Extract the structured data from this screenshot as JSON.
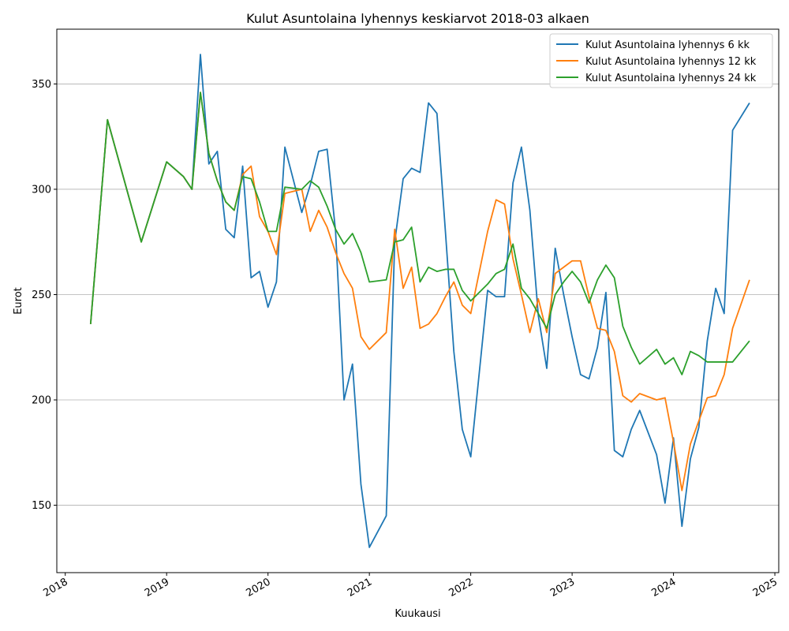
{
  "chart_data": {
    "type": "line",
    "title": "Kulut Asuntolaina lyhennys keskiarvot 2018-03 alkaen",
    "xlabel": "Kuukausi",
    "ylabel": "Eurot",
    "xlim": [
      "2017-12-01",
      "2025-01-15"
    ],
    "ylim": [
      118,
      376
    ],
    "x_ticks": [
      "2018",
      "2019",
      "2020",
      "2021",
      "2022",
      "2023",
      "2024",
      "2025"
    ],
    "y_ticks": [
      150,
      200,
      250,
      300,
      350
    ],
    "grid": "y",
    "legend_position": "top-right",
    "series": [
      {
        "name": "Kulut Asuntolaina lyhennys 6 kk",
        "color": "#1f77b4",
        "points": [
          [
            "2018-04",
            236
          ],
          [
            "2018-06",
            333
          ],
          [
            "2018-10",
            275
          ],
          [
            "2019-01",
            313
          ],
          [
            "2019-03",
            306
          ],
          [
            "2019-04",
            300
          ],
          [
            "2019-05",
            364
          ],
          [
            "2019-06",
            312
          ],
          [
            "2019-07",
            318
          ],
          [
            "2019-08",
            281
          ],
          [
            "2019-09",
            277
          ],
          [
            "2019-10",
            311
          ],
          [
            "2019-11",
            258
          ],
          [
            "2019-12",
            261
          ],
          [
            "2020-01",
            244
          ],
          [
            "2020-02",
            256
          ],
          [
            "2020-03",
            320
          ],
          [
            "2020-05",
            289
          ],
          [
            "2020-06",
            302
          ],
          [
            "2020-07",
            318
          ],
          [
            "2020-08",
            319
          ],
          [
            "2020-09",
            280
          ],
          [
            "2020-10",
            200
          ],
          [
            "2020-11",
            217
          ],
          [
            "2020-12",
            160
          ],
          [
            "2021-01",
            130
          ],
          [
            "2021-03",
            145
          ],
          [
            "2021-04",
            275
          ],
          [
            "2021-05",
            305
          ],
          [
            "2021-06",
            310
          ],
          [
            "2021-07",
            308
          ],
          [
            "2021-08",
            341
          ],
          [
            "2021-09",
            336
          ],
          [
            "2021-10",
            280
          ],
          [
            "2021-11",
            223
          ],
          [
            "2021-12",
            186
          ],
          [
            "2022-01",
            173
          ],
          [
            "2022-03",
            252
          ],
          [
            "2022-04",
            249
          ],
          [
            "2022-05",
            249
          ],
          [
            "2022-06",
            303
          ],
          [
            "2022-07",
            320
          ],
          [
            "2022-08",
            290
          ],
          [
            "2022-09",
            240
          ],
          [
            "2022-10",
            215
          ],
          [
            "2022-11",
            272
          ],
          [
            "2022-12",
            250
          ],
          [
            "2023-01",
            230
          ],
          [
            "2023-02",
            212
          ],
          [
            "2023-03",
            210
          ],
          [
            "2023-04",
            225
          ],
          [
            "2023-05",
            251
          ],
          [
            "2023-06",
            176
          ],
          [
            "2023-07",
            173
          ],
          [
            "2023-08",
            186
          ],
          [
            "2023-09",
            195
          ],
          [
            "2023-11",
            174
          ],
          [
            "2023-12",
            151
          ],
          [
            "2024-01",
            182
          ],
          [
            "2024-02",
            140
          ],
          [
            "2024-03",
            172
          ],
          [
            "2024-04",
            187
          ],
          [
            "2024-05",
            228
          ],
          [
            "2024-06",
            253
          ],
          [
            "2024-07",
            241
          ],
          [
            "2024-08",
            328
          ],
          [
            "2024-10",
            341
          ]
        ]
      },
      {
        "name": "Kulut Asuntolaina lyhennys 12 kk",
        "color": "#ff7f0e",
        "points": [
          [
            "2018-04",
            236
          ],
          [
            "2018-06",
            333
          ],
          [
            "2018-10",
            275
          ],
          [
            "2019-01",
            313
          ],
          [
            "2019-03",
            306
          ],
          [
            "2019-04",
            300
          ],
          [
            "2019-05",
            346
          ],
          [
            "2019-06",
            317
          ],
          [
            "2019-07",
            304
          ],
          [
            "2019-08",
            294
          ],
          [
            "2019-09",
            290
          ],
          [
            "2019-10",
            307
          ],
          [
            "2019-11",
            311
          ],
          [
            "2019-12",
            287
          ],
          [
            "2020-01",
            280
          ],
          [
            "2020-02",
            269
          ],
          [
            "2020-03",
            298
          ],
          [
            "2020-05",
            300
          ],
          [
            "2020-06",
            280
          ],
          [
            "2020-07",
            290
          ],
          [
            "2020-08",
            282
          ],
          [
            "2020-09",
            270
          ],
          [
            "2020-10",
            260
          ],
          [
            "2020-11",
            253
          ],
          [
            "2020-12",
            230
          ],
          [
            "2021-01",
            224
          ],
          [
            "2021-03",
            232
          ],
          [
            "2021-04",
            281
          ],
          [
            "2021-05",
            253
          ],
          [
            "2021-06",
            263
          ],
          [
            "2021-07",
            234
          ],
          [
            "2021-08",
            236
          ],
          [
            "2021-09",
            241
          ],
          [
            "2021-10",
            249
          ],
          [
            "2021-11",
            256
          ],
          [
            "2021-12",
            245
          ],
          [
            "2022-01",
            241
          ],
          [
            "2022-03",
            280
          ],
          [
            "2022-04",
            295
          ],
          [
            "2022-05",
            293
          ],
          [
            "2022-06",
            267
          ],
          [
            "2022-07",
            250
          ],
          [
            "2022-08",
            232
          ],
          [
            "2022-09",
            248
          ],
          [
            "2022-10",
            232
          ],
          [
            "2022-11",
            260
          ],
          [
            "2022-12",
            263
          ],
          [
            "2023-01",
            266
          ],
          [
            "2023-02",
            266
          ],
          [
            "2023-03",
            249
          ],
          [
            "2023-04",
            234
          ],
          [
            "2023-05",
            233
          ],
          [
            "2023-06",
            223
          ],
          [
            "2023-07",
            202
          ],
          [
            "2023-08",
            199
          ],
          [
            "2023-09",
            203
          ],
          [
            "2023-11",
            200
          ],
          [
            "2023-12",
            201
          ],
          [
            "2024-01",
            180
          ],
          [
            "2024-02",
            157
          ],
          [
            "2024-03",
            179
          ],
          [
            "2024-04",
            190
          ],
          [
            "2024-05",
            201
          ],
          [
            "2024-06",
            202
          ],
          [
            "2024-07",
            212
          ],
          [
            "2024-08",
            234
          ],
          [
            "2024-10",
            257
          ]
        ]
      },
      {
        "name": "Kulut Asuntolaina lyhennys 24 kk",
        "color": "#2ca02c",
        "points": [
          [
            "2018-04",
            236
          ],
          [
            "2018-06",
            333
          ],
          [
            "2018-10",
            275
          ],
          [
            "2019-01",
            313
          ],
          [
            "2019-03",
            306
          ],
          [
            "2019-04",
            300
          ],
          [
            "2019-05",
            346
          ],
          [
            "2019-06",
            317
          ],
          [
            "2019-07",
            304
          ],
          [
            "2019-08",
            294
          ],
          [
            "2019-09",
            290
          ],
          [
            "2019-10",
            306
          ],
          [
            "2019-11",
            305
          ],
          [
            "2019-12",
            294
          ],
          [
            "2020-01",
            280
          ],
          [
            "2020-02",
            280
          ],
          [
            "2020-03",
            301
          ],
          [
            "2020-05",
            300
          ],
          [
            "2020-06",
            304
          ],
          [
            "2020-07",
            301
          ],
          [
            "2020-08",
            292
          ],
          [
            "2020-09",
            281
          ],
          [
            "2020-10",
            274
          ],
          [
            "2020-11",
            279
          ],
          [
            "2020-12",
            270
          ],
          [
            "2021-01",
            256
          ],
          [
            "2021-03",
            257
          ],
          [
            "2021-04",
            275
          ],
          [
            "2021-05",
            276
          ],
          [
            "2021-06",
            282
          ],
          [
            "2021-07",
            256
          ],
          [
            "2021-08",
            263
          ],
          [
            "2021-09",
            261
          ],
          [
            "2021-10",
            262
          ],
          [
            "2021-11",
            262
          ],
          [
            "2021-12",
            252
          ],
          [
            "2022-01",
            247
          ],
          [
            "2022-03",
            255
          ],
          [
            "2022-04",
            260
          ],
          [
            "2022-05",
            262
          ],
          [
            "2022-06",
            274
          ],
          [
            "2022-07",
            253
          ],
          [
            "2022-08",
            248
          ],
          [
            "2022-09",
            241
          ],
          [
            "2022-10",
            234
          ],
          [
            "2022-11",
            250
          ],
          [
            "2022-12",
            256
          ],
          [
            "2023-01",
            261
          ],
          [
            "2023-02",
            256
          ],
          [
            "2023-03",
            246
          ],
          [
            "2023-04",
            257
          ],
          [
            "2023-05",
            264
          ],
          [
            "2023-06",
            258
          ],
          [
            "2023-07",
            235
          ],
          [
            "2023-08",
            225
          ],
          [
            "2023-09",
            217
          ],
          [
            "2023-11",
            224
          ],
          [
            "2023-12",
            217
          ],
          [
            "2024-01",
            220
          ],
          [
            "2024-02",
            212
          ],
          [
            "2024-03",
            223
          ],
          [
            "2024-04",
            221
          ],
          [
            "2024-05",
            218
          ],
          [
            "2024-06",
            218
          ],
          [
            "2024-07",
            218
          ],
          [
            "2024-08",
            218
          ],
          [
            "2024-10",
            228
          ]
        ]
      }
    ]
  }
}
